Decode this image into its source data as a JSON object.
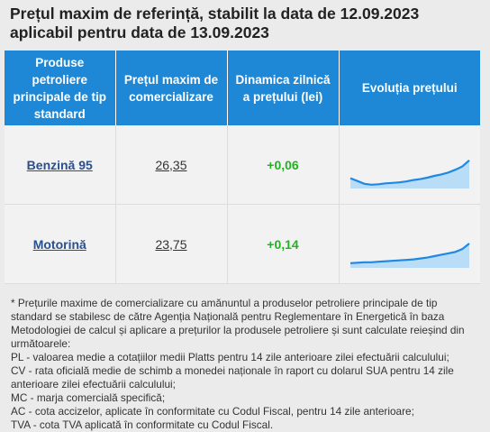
{
  "title": {
    "line1": "Prețul maxim de referință, stabilit la data de 12.09.2023",
    "line2": "aplicabil pentru data de 13.09.2023"
  },
  "table": {
    "headers": [
      "Produse petroliere principale de tip standard",
      "Prețul maxim de comercializare",
      "Dinamica zilnică a prețului (lei)",
      "Evoluția prețului"
    ],
    "rows": [
      {
        "product": "Benzină 95",
        "price": "26,35",
        "delta": "+0,06",
        "trend": [
          0.22,
          0.16,
          0.1,
          0.08,
          0.09,
          0.11,
          0.12,
          0.13,
          0.15,
          0.18,
          0.2,
          0.23,
          0.27,
          0.3,
          0.34,
          0.4,
          0.47,
          0.6
        ]
      },
      {
        "product": "Motorină",
        "price": "23,75",
        "delta": "+0,14",
        "trend": [
          0.1,
          0.11,
          0.12,
          0.12,
          0.13,
          0.14,
          0.15,
          0.16,
          0.17,
          0.18,
          0.2,
          0.22,
          0.25,
          0.28,
          0.31,
          0.34,
          0.4,
          0.52
        ]
      }
    ]
  },
  "chart_colors": {
    "line": "#1e88e5",
    "fill": "#b9dcf7"
  },
  "notes": [
    "* Prețurile maxime de comercializare cu amănuntul a produselor petroliere principale de tip standard se stabilesc de către Agenția Națională pentru Reglementare în Energetică în baza Metodologiei de calcul și aplicare a prețurilor la produsele petroliere și sunt calculate reieșind din următoarele:",
    "PL - valoarea medie a cotațiilor medii Platts pentru 14 zile anterioare zilei efectuării calculului;",
    "CV - rata oficială medie de schimb a monedei naționale în raport cu dolarul SUA pentru 14 zile anterioare zilei efectuării calculului;",
    "MC - marja comercială specifică;",
    "AC - cota accizelor, aplicate în conformitate cu Codul Fiscal, pentru 14 zile anterioare;",
    "TVA - cota TVA aplicată în conformitate cu Codul Fiscal."
  ]
}
